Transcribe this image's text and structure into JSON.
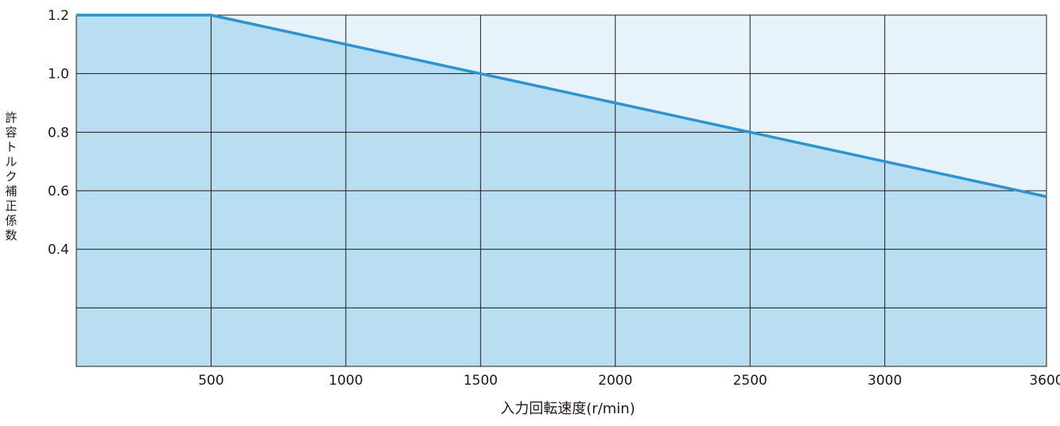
{
  "chart_data": {
    "type": "area",
    "title": "",
    "xlabel": "入力回転速度(r/min)",
    "ylabel": "許容トルク補正係数",
    "xlim": [
      0,
      3600
    ],
    "ylim": [
      0,
      1.2
    ],
    "x_ticks": [
      500,
      1000,
      1500,
      2000,
      2500,
      3000,
      3600
    ],
    "x_tick_labels": [
      "500",
      "1000",
      "1500",
      "2000",
      "2500",
      "3000",
      "3600"
    ],
    "x_grid": [
      500,
      1000,
      1500,
      2000,
      2500,
      3000,
      3600
    ],
    "y_ticks": [
      0.4,
      0.6,
      0.8,
      1.0,
      1.2
    ],
    "y_tick_labels": [
      "0.4",
      "0.6",
      "0.8",
      "1.0",
      "1.2"
    ],
    "y_grid": [
      0.2,
      0.4,
      0.6,
      0.8,
      1.0,
      1.2
    ],
    "grid": true,
    "series": [
      {
        "x": [
          0,
          500,
          1000,
          1500,
          2000,
          2500,
          3000,
          3600
        ],
        "y": [
          1.2,
          1.2,
          1.1,
          1.0,
          0.9,
          0.8,
          0.7,
          0.58
        ]
      }
    ],
    "colors": {
      "line": "#2e93d1",
      "fill_below": "#badef1",
      "fill_above": "#e7f3fa",
      "grid": "#231815",
      "text": "#231815"
    }
  }
}
